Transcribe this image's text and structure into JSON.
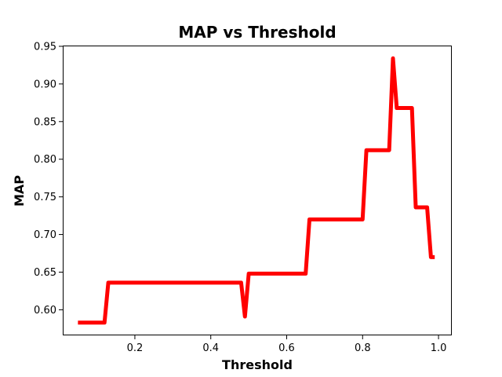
{
  "chart_data": {
    "type": "line",
    "title": "MAP vs Threshold",
    "xlabel": "Threshold",
    "ylabel": "MAP",
    "xlim": [
      0.01,
      1.035
    ],
    "ylim": [
      0.566,
      0.951
    ],
    "xticks": [
      0.2,
      0.4,
      0.6,
      0.8,
      1.0
    ],
    "xtick_labels": [
      "0.2",
      "0.4",
      "0.6",
      "0.8",
      "1.0"
    ],
    "yticks": [
      0.6,
      0.65,
      0.7,
      0.75,
      0.8,
      0.85,
      0.9,
      0.95
    ],
    "ytick_labels": [
      "0.60",
      "0.65",
      "0.70",
      "0.75",
      "0.80",
      "0.85",
      "0.90",
      "0.95"
    ],
    "grid": false,
    "series": [
      {
        "color": "#ff0000",
        "x": [
          0.05,
          0.06,
          0.07,
          0.08,
          0.09,
          0.1,
          0.11,
          0.12,
          0.13,
          0.14,
          0.15,
          0.16,
          0.17,
          0.18,
          0.19,
          0.2,
          0.21,
          0.22,
          0.23,
          0.24,
          0.25,
          0.26,
          0.27,
          0.28,
          0.29,
          0.3,
          0.31,
          0.32,
          0.33,
          0.34,
          0.35,
          0.36,
          0.37,
          0.38,
          0.39,
          0.4,
          0.41,
          0.42,
          0.43,
          0.44,
          0.45,
          0.46,
          0.47,
          0.48,
          0.49,
          0.5,
          0.51,
          0.52,
          0.53,
          0.54,
          0.55,
          0.56,
          0.57,
          0.58,
          0.59,
          0.6,
          0.61,
          0.62,
          0.63,
          0.64,
          0.65,
          0.66,
          0.67,
          0.68,
          0.69,
          0.7,
          0.71,
          0.72,
          0.73,
          0.74,
          0.75,
          0.76,
          0.77,
          0.78,
          0.79,
          0.8,
          0.81,
          0.82,
          0.83,
          0.84,
          0.85,
          0.86,
          0.87,
          0.88,
          0.89,
          0.9,
          0.91,
          0.92,
          0.93,
          0.94,
          0.95,
          0.96,
          0.97,
          0.98,
          0.99
        ],
        "y": [
          0.583,
          0.583,
          0.583,
          0.583,
          0.583,
          0.583,
          0.583,
          0.583,
          0.636,
          0.636,
          0.636,
          0.636,
          0.636,
          0.636,
          0.636,
          0.636,
          0.636,
          0.636,
          0.636,
          0.636,
          0.636,
          0.636,
          0.636,
          0.636,
          0.636,
          0.636,
          0.636,
          0.636,
          0.636,
          0.636,
          0.636,
          0.636,
          0.636,
          0.636,
          0.636,
          0.636,
          0.636,
          0.636,
          0.636,
          0.636,
          0.636,
          0.636,
          0.636,
          0.636,
          0.591,
          0.648,
          0.648,
          0.648,
          0.648,
          0.648,
          0.648,
          0.648,
          0.648,
          0.648,
          0.648,
          0.648,
          0.648,
          0.648,
          0.648,
          0.648,
          0.648,
          0.72,
          0.72,
          0.72,
          0.72,
          0.72,
          0.72,
          0.72,
          0.72,
          0.72,
          0.72,
          0.72,
          0.72,
          0.72,
          0.72,
          0.72,
          0.812,
          0.812,
          0.812,
          0.812,
          0.812,
          0.812,
          0.812,
          0.934,
          0.868,
          0.868,
          0.868,
          0.868,
          0.868,
          0.736,
          0.736,
          0.736,
          0.736,
          0.67,
          0.67
        ]
      }
    ]
  }
}
